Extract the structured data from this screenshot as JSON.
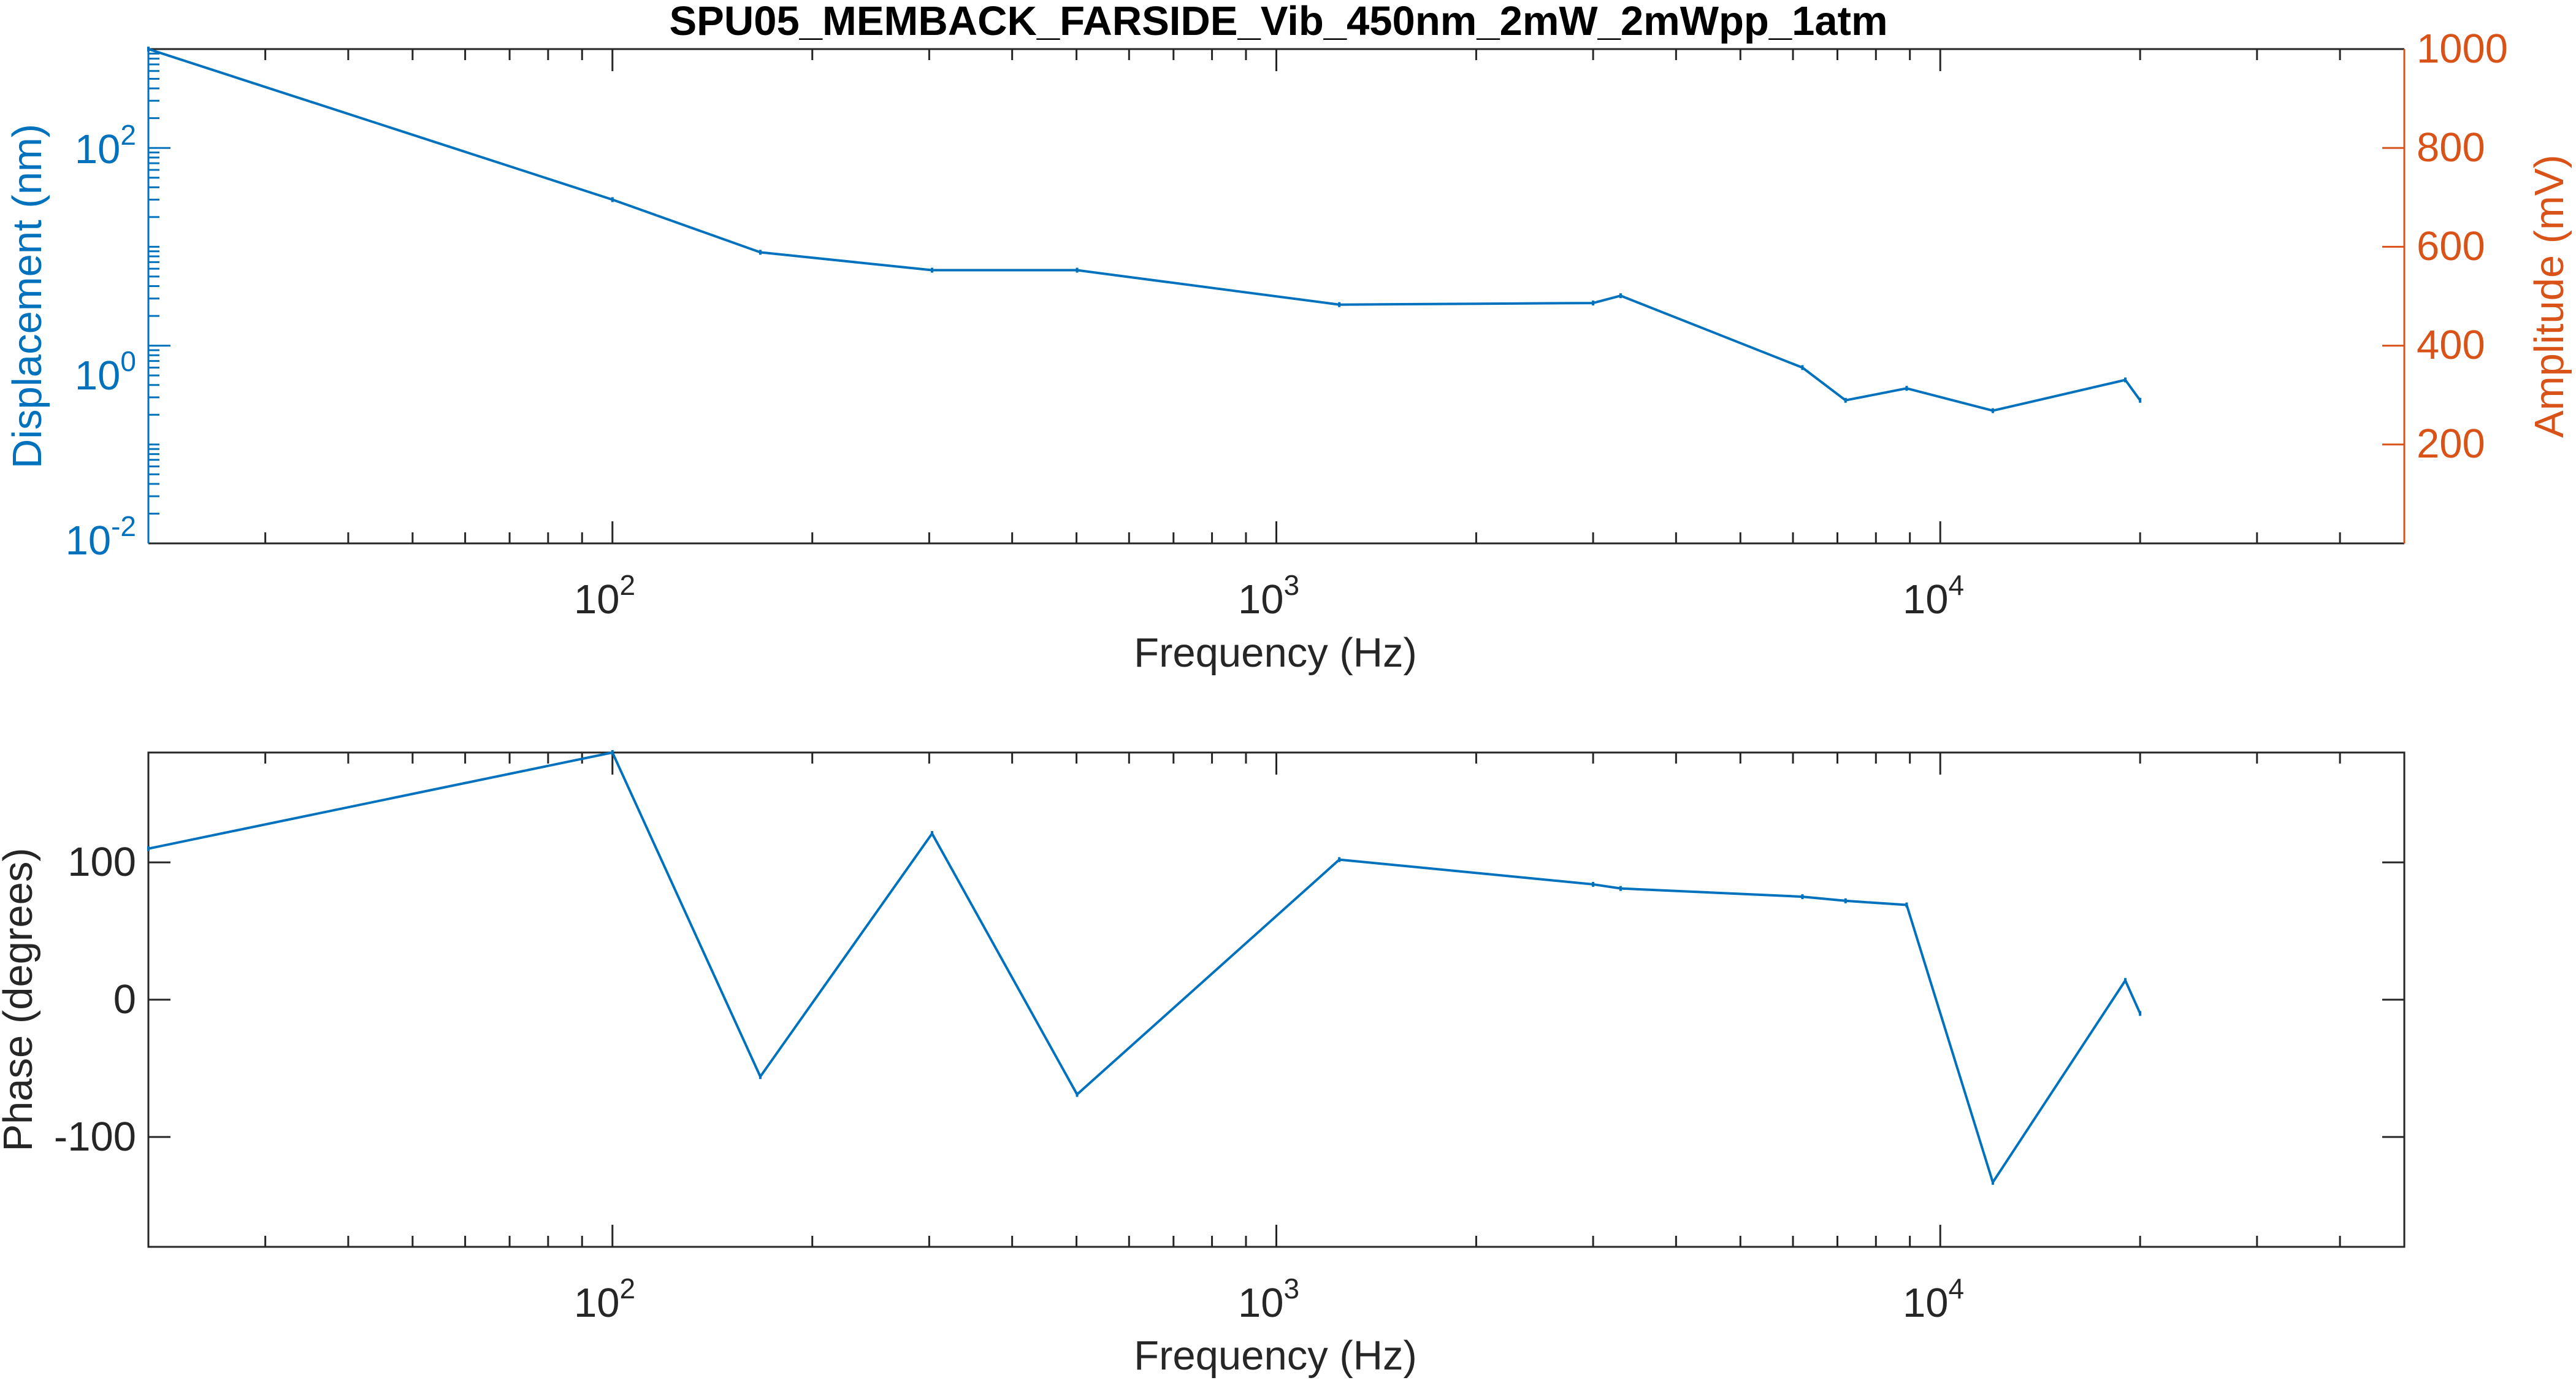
{
  "figure": {
    "title": "SPU05_MEMBACK_FARSIDE_Vib_450nm_2mW_2mWpp_1atm"
  },
  "colors": {
    "series": "#0072BD",
    "left_axis": "#0072BD",
    "right_axis": "#D95319",
    "axis": "#262626"
  },
  "chart_data": [
    {
      "type": "line",
      "x_scale": "log",
      "y_scale": "log",
      "grid": false,
      "xlabel": "Frequency (Hz)",
      "ylabel": "Displacement (nm)",
      "y2label": "Amplitude (mV)",
      "xlim": [
        20,
        50000
      ],
      "ylim": [
        0.01,
        1000
      ],
      "y2lim": [
        0,
        1000
      ],
      "x_ticks": [
        {
          "base": "10",
          "exp": "2",
          "value": 100
        },
        {
          "base": "10",
          "exp": "3",
          "value": 1000
        },
        {
          "base": "10",
          "exp": "4",
          "value": 10000
        }
      ],
      "y_ticks": [
        {
          "base": "10",
          "exp": "-2",
          "value": 0.01
        },
        {
          "base": "10",
          "exp": "0",
          "value": 1
        },
        {
          "base": "10",
          "exp": "2",
          "value": 100
        }
      ],
      "y2_ticks": [
        "200",
        "400",
        "600",
        "800",
        "1000"
      ],
      "series": [
        {
          "x": [
            20,
            100,
            167,
            303,
            501,
            1244,
            3000,
            3300,
            6200,
            7200,
            8900,
            12000,
            19000,
            20000
          ],
          "y": [
            1000,
            30,
            8.8,
            5.8,
            5.8,
            2.6,
            2.7,
            3.2,
            0.6,
            0.28,
            0.37,
            0.22,
            0.45,
            0.28
          ]
        }
      ]
    },
    {
      "type": "line",
      "x_scale": "log",
      "grid": false,
      "xlabel": "Frequency (Hz)",
      "ylabel": "Phase (degrees)",
      "xlim": [
        20,
        50000
      ],
      "ylim": [
        -180,
        180
      ],
      "x_ticks": [
        {
          "base": "10",
          "exp": "2",
          "value": 100
        },
        {
          "base": "10",
          "exp": "3",
          "value": 1000
        },
        {
          "base": "10",
          "exp": "4",
          "value": 10000
        }
      ],
      "y_ticks": [
        "-100",
        "0",
        "100"
      ],
      "series": [
        {
          "x": [
            20,
            100,
            167,
            303,
            501,
            1244,
            3000,
            3300,
            6200,
            7200,
            8900,
            12000,
            19000,
            20000
          ],
          "y": [
            110,
            180,
            -56,
            121,
            -69,
            102,
            84,
            81,
            75,
            72,
            69,
            -133,
            14,
            -10
          ]
        }
      ]
    }
  ]
}
